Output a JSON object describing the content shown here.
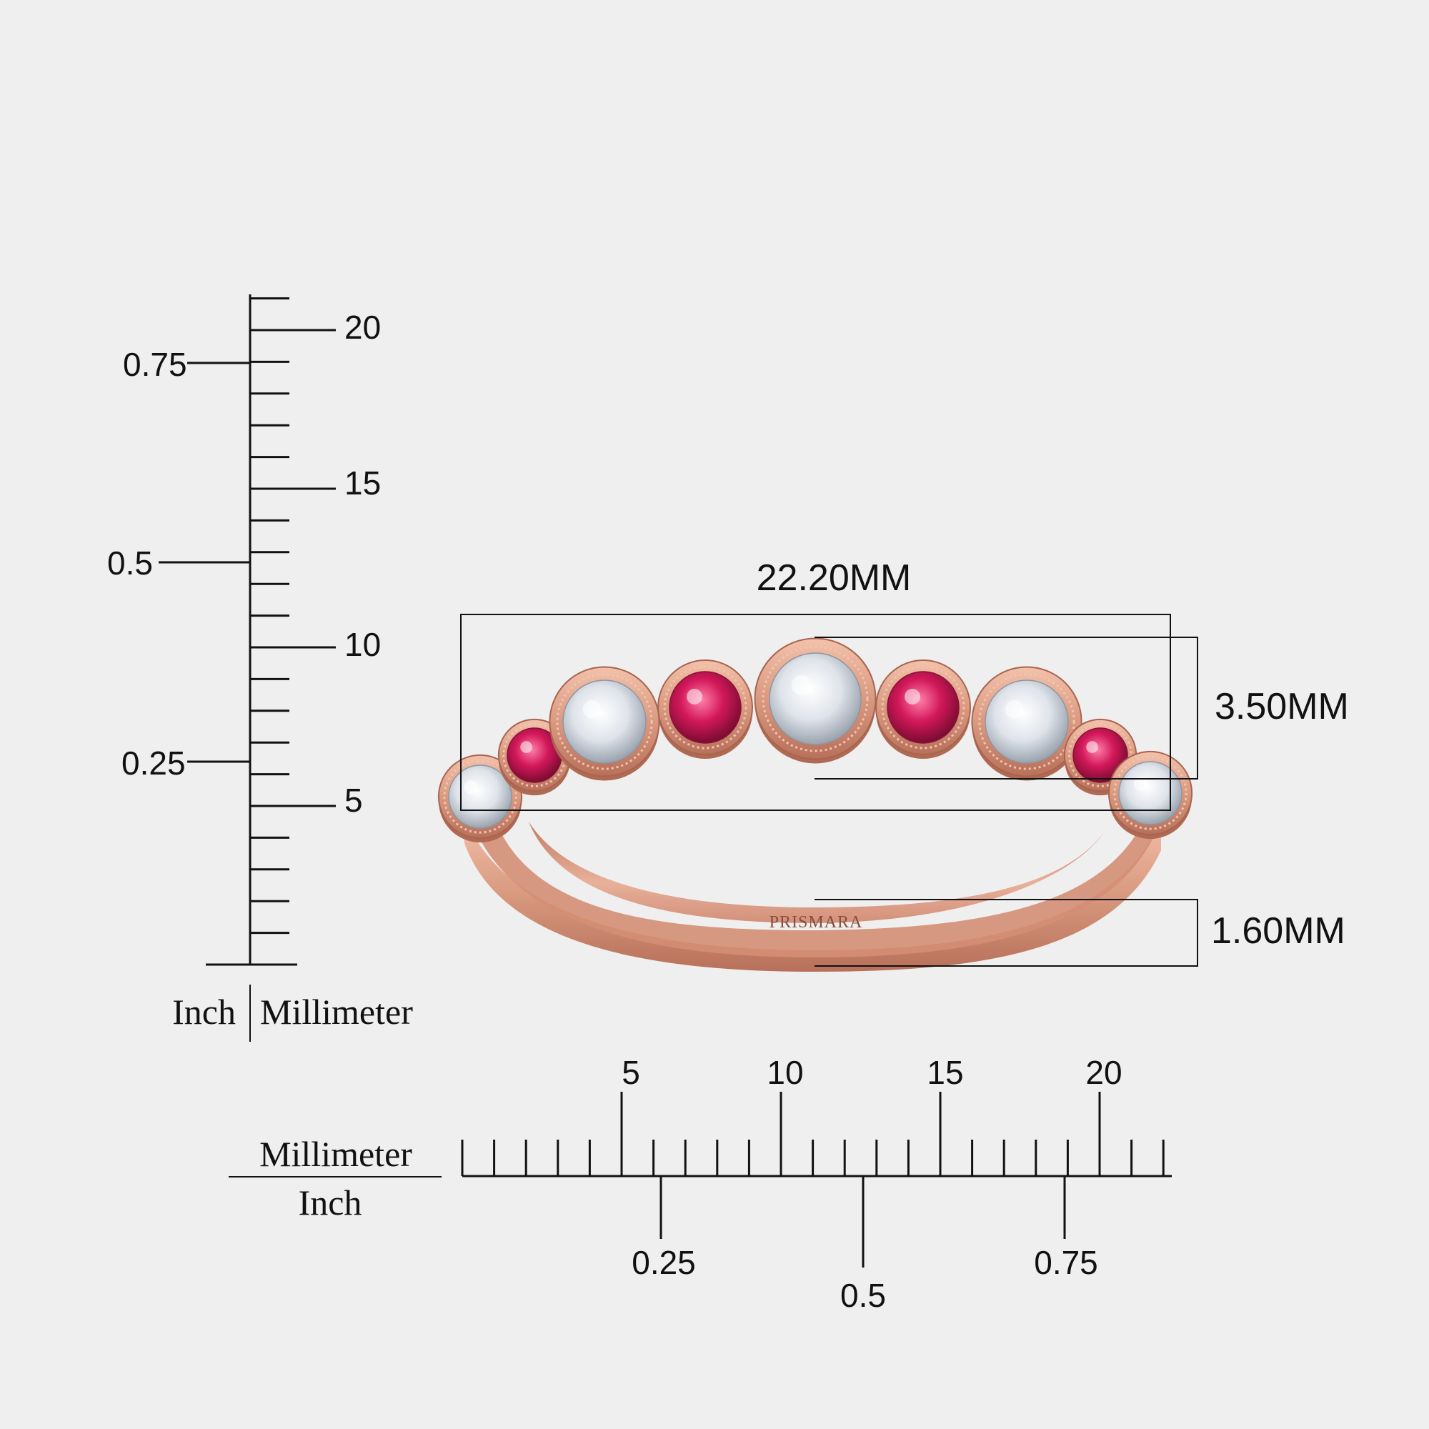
{
  "vertical_ruler": {
    "mm_labels": [
      "5",
      "10",
      "15",
      "20"
    ],
    "inch_labels": [
      "0.25",
      "0.5",
      "0.75"
    ],
    "unit_left": "Inch",
    "unit_right": "Millimeter"
  },
  "horizontal_ruler": {
    "mm_labels": [
      "5",
      "10",
      "15",
      "20"
    ],
    "inch_labels": [
      "0.25",
      "0.5",
      "0.75"
    ],
    "unit_top": "Millimeter",
    "unit_bottom": "Inch"
  },
  "dimensions": {
    "width": "22.20MM",
    "height": "3.50MM",
    "band": "1.60MM"
  },
  "ring": {
    "engraving": "PRISMARA",
    "metal_color": "#d99a80",
    "metal_shadow": "#b8705a",
    "metal_highlight": "#f6c7b2",
    "pink_stone": "#d3185a",
    "white_stone": "#e3e6ec",
    "stones": [
      "white",
      "pink",
      "white",
      "pink",
      "white",
      "pink",
      "white",
      "pink",
      "white"
    ]
  }
}
